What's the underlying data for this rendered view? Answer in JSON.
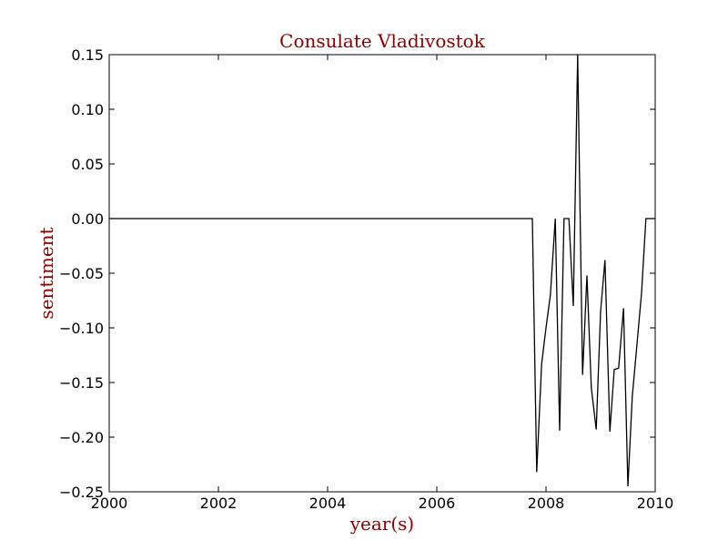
{
  "chart_data": {
    "type": "line",
    "title": "Consulate Vladivostok",
    "xlabel": "year(s)",
    "ylabel": "sentiment",
    "xlim": [
      2000,
      2010
    ],
    "ylim": [
      -0.25,
      0.15
    ],
    "xticks": [
      "2000",
      "2002",
      "2004",
      "2006",
      "2008",
      "2010"
    ],
    "yticks": [
      "0.15",
      "0.10",
      "0.05",
      "0.00",
      "−0.05",
      "−0.10",
      "−0.15",
      "−0.20",
      "−0.25"
    ],
    "grid": false,
    "series": [
      {
        "x": [
          2000.0,
          2007.75,
          2007.83,
          2007.92,
          2008.0,
          2008.08,
          2008.17,
          2008.25,
          2008.33,
          2008.42,
          2008.5,
          2008.58,
          2008.67,
          2008.75,
          2008.83,
          2008.92,
          2009.0,
          2009.08,
          2009.17,
          2009.25,
          2009.33,
          2009.42,
          2009.5,
          2009.58,
          2009.67,
          2009.75,
          2009.83,
          2009.92,
          2010.0
        ],
        "y": [
          0.0,
          0.0,
          -0.232,
          -0.133,
          -0.1,
          -0.07,
          0.0,
          -0.194,
          0.0,
          0.0,
          -0.08,
          0.15,
          -0.143,
          -0.052,
          -0.155,
          -0.193,
          -0.085,
          -0.038,
          -0.195,
          -0.138,
          -0.137,
          -0.082,
          -0.245,
          -0.163,
          -0.113,
          -0.068,
          0.0,
          0.0,
          0.0
        ]
      }
    ]
  },
  "colors": {
    "title": "#8b0000",
    "axis_labels": "#8b0000",
    "line": "#000000"
  }
}
